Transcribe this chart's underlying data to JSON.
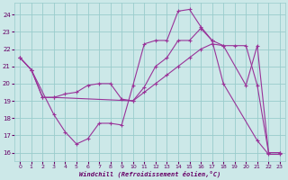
{
  "line_a": {
    "x": [
      0,
      1,
      3,
      4,
      5,
      6,
      7,
      8,
      9,
      10,
      11,
      12,
      13,
      14,
      15,
      16,
      17,
      18,
      21,
      22,
      23
    ],
    "y": [
      21.5,
      20.8,
      18.2,
      17.2,
      16.5,
      16.8,
      17.7,
      17.7,
      17.6,
      19.9,
      22.3,
      22.5,
      22.5,
      24.2,
      24.3,
      23.3,
      22.5,
      20.0,
      16.7,
      15.9,
      15.9
    ]
  },
  "line_b": {
    "x": [
      0,
      1,
      2,
      3,
      4,
      5,
      6,
      7,
      8,
      9,
      10,
      11,
      12,
      13,
      14,
      15,
      16,
      17,
      18,
      19,
      20,
      21,
      22,
      23
    ],
    "y": [
      21.5,
      20.8,
      19.2,
      19.2,
      19.4,
      19.5,
      19.9,
      20.0,
      20.0,
      19.1,
      19.0,
      19.5,
      20.0,
      20.5,
      21.0,
      21.5,
      22.0,
      22.3,
      22.2,
      22.2,
      22.2,
      19.9,
      16.0,
      16.0
    ]
  },
  "line_c": {
    "x": [
      0,
      1,
      2,
      3,
      10,
      11,
      12,
      13,
      14,
      15,
      16,
      17,
      18,
      20,
      21,
      22,
      23
    ],
    "y": [
      21.5,
      20.8,
      19.2,
      19.2,
      19.0,
      19.8,
      21.0,
      21.5,
      22.5,
      22.5,
      23.2,
      22.5,
      22.2,
      19.9,
      22.2,
      16.0,
      16.0
    ]
  },
  "line_color": "#993399",
  "bg_color": "#cce8e8",
  "grid_color": "#99cccc",
  "xlabel": "Windchill (Refroidissement éolien,°C)",
  "ylim_min": 15.5,
  "ylim_max": 24.7,
  "xlim_min": -0.5,
  "xlim_max": 23.5,
  "yticks": [
    16,
    17,
    18,
    19,
    20,
    21,
    22,
    23,
    24
  ],
  "xticks": [
    0,
    1,
    2,
    3,
    4,
    5,
    6,
    7,
    8,
    9,
    10,
    11,
    12,
    13,
    14,
    15,
    16,
    17,
    18,
    19,
    20,
    21,
    22,
    23
  ]
}
